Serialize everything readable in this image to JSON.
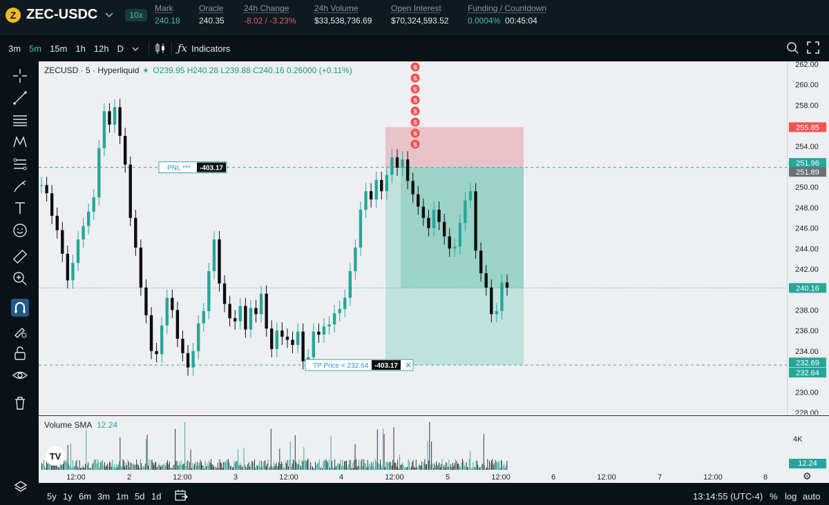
{
  "header": {
    "coin_glyph": "Z",
    "pair": "ZEC-USDC",
    "leverage": "10x",
    "stats": [
      {
        "label": "Mark",
        "value": "240.18",
        "tone": "teal"
      },
      {
        "label": "Oracle",
        "value": "240.35",
        "tone": "white"
      },
      {
        "label": "24h Change",
        "value": "-8.02 / -3.23%",
        "tone": "red"
      },
      {
        "label": "24h Volume",
        "value": "$33,538,736.69",
        "tone": "white"
      },
      {
        "label": "Open Interest",
        "value": "$70,324,593.52",
        "tone": "white"
      },
      {
        "label": "Funding / Countdown",
        "value": "0.0004%",
        "tone": "teal",
        "extra": "00:45:04"
      }
    ]
  },
  "toolbar": {
    "timeframes": [
      "3m",
      "5m",
      "15m",
      "1h",
      "12h",
      "D"
    ],
    "active_tf": "5m",
    "indicators_label": "Indicators"
  },
  "legend": {
    "title": "ZECUSD · 5 · Hyperliquid",
    "ohlc": "O239.95 H240.28 L239.88 C240.16 0.26000 (+0.11%)"
  },
  "volume": {
    "label": "Volume SMA",
    "value": "12.24",
    "axis_label": "4K",
    "tag": "12.24"
  },
  "position": {
    "pnl_label": "PNL ***",
    "pnl_value": "-403.17",
    "tp_label": "TP Price < 232.64",
    "tp_value": "-403.17",
    "close_glyph": "✕",
    "s_marker": "S"
  },
  "colors": {
    "teal": "#26a69a",
    "red": "#ef5350",
    "stop_zone": "#e8c3c9",
    "profit_zone": "#9bd3c9",
    "profit_zone_light": "#c0e2dd"
  },
  "chart_data": {
    "type": "candlestick",
    "ylim": [
      228,
      262
    ],
    "y_ticks": [
      "262.00",
      "260.00",
      "258.00",
      "254.00",
      "250.00",
      "248.00",
      "246.00",
      "244.00",
      "242.00",
      "238.00",
      "236.00",
      "234.00",
      "230.00",
      "228.00"
    ],
    "x_ticks": [
      "12:00",
      "2",
      "12:00",
      "3",
      "12:00",
      "4",
      "12:00",
      "5",
      "12:00",
      "6",
      "12:00",
      "7",
      "12:00",
      "8"
    ],
    "price_tags": [
      {
        "value": "255.85",
        "color": "#ef5350"
      },
      {
        "value": "251.96",
        "color": "#26a69a"
      },
      {
        "value": "251.89",
        "color": "#6b7177"
      },
      {
        "value": "240.16",
        "color": "#26a69a"
      },
      {
        "value": "232.69",
        "color": "#26a69a"
      },
      {
        "value": "232.64",
        "color": "#26a69a"
      }
    ],
    "entry_price": 251.93,
    "stop_price": 255.85,
    "target_price": 232.64,
    "current_price": 240.16,
    "series": [
      {
        "values": [
          250.2,
          249.4,
          247.2,
          245.8,
          243.5,
          240.9,
          242.6,
          244.9,
          246.2,
          247.6,
          249.0,
          253.8,
          257.4,
          256.1,
          257.8,
          255.0,
          252.2,
          247.0,
          244.1,
          240.2,
          237.5,
          234.0,
          233.7,
          236.5,
          239.2,
          238.0,
          235.2,
          233.8,
          232.4,
          234.0,
          236.7,
          237.9,
          241.8,
          244.9,
          240.6,
          238.6,
          237.2,
          236.9,
          238.4,
          236.1,
          238.2,
          237.6,
          239.6,
          236.2,
          234.2,
          236.0,
          235.4,
          235.1,
          234.6,
          235.9,
          233.0,
          233.4,
          235.9,
          235.6,
          236.4,
          236.6,
          237.7,
          238.1,
          239.2,
          241.8,
          244.1,
          247.8,
          249.6,
          248.8,
          250.7,
          249.6,
          251.2,
          252.9,
          251.9,
          252.7,
          250.6,
          249.3,
          248.1,
          247.0,
          246.0,
          247.8,
          246.6,
          245.2,
          244.0,
          244.2,
          246.5,
          248.7,
          249.6,
          243.8,
          241.6,
          240.2,
          237.6,
          237.9,
          240.7,
          240.2
        ]
      }
    ]
  },
  "xaxis_labels_extra": {
    "settings_icon": "⚙"
  },
  "bottom": {
    "ranges": [
      "5y",
      "1y",
      "6m",
      "3m",
      "1m",
      "5d",
      "1d"
    ],
    "time": "13:14:55 (UTC-4)",
    "pct": "%",
    "log": "log",
    "auto": "auto"
  }
}
